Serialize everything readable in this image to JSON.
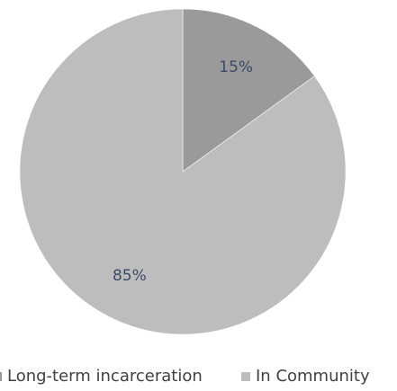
{
  "chart_data": {
    "type": "pie",
    "slices": [
      {
        "label": "Long-term incarceration",
        "value": 15,
        "display": "15%",
        "color": "#9a9a9a"
      },
      {
        "label": "In Community",
        "value": 85,
        "display": "85%",
        "color": "#bdbdbd"
      }
    ],
    "legend_position": "bottom"
  }
}
